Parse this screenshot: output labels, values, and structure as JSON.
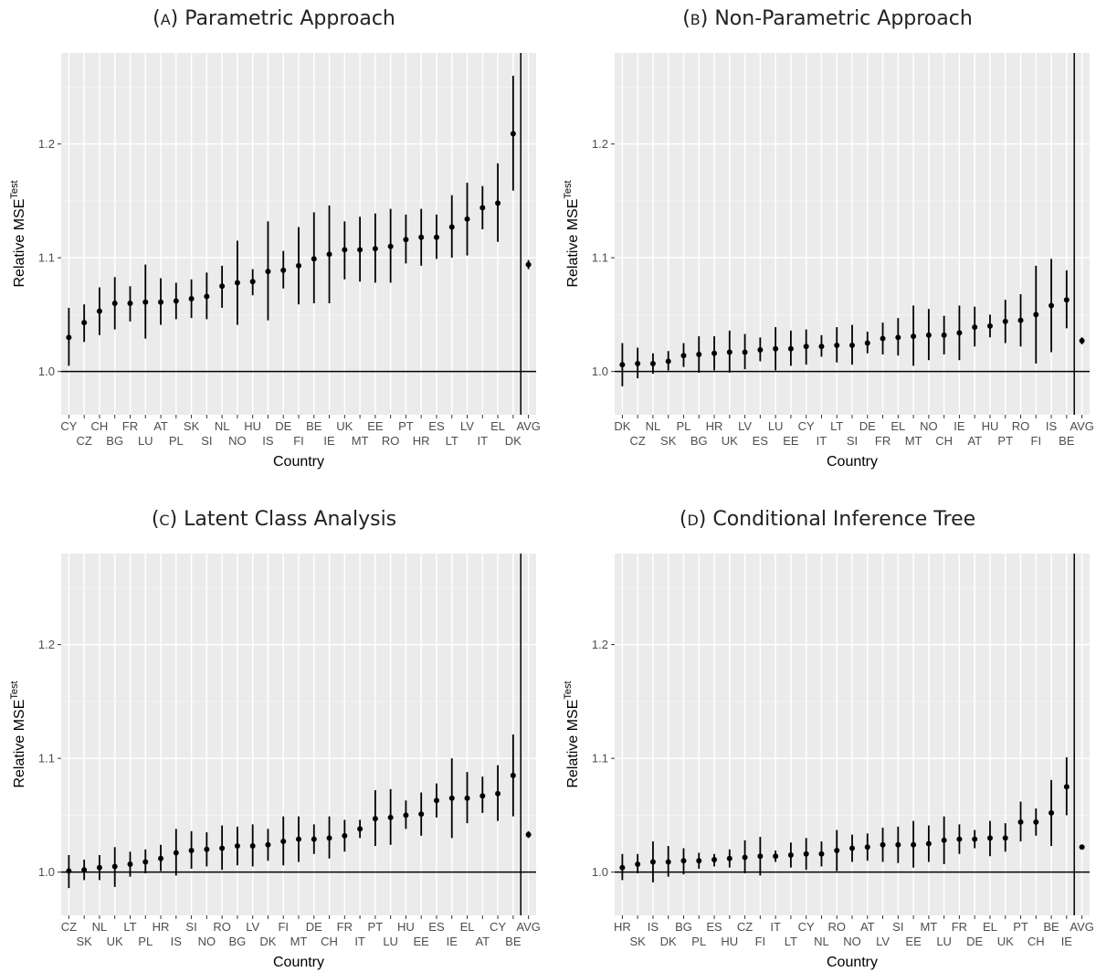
{
  "chart_data": [
    {
      "type": "scatter",
      "title": "(A) Parametric Approach",
      "xlabel": "Country",
      "ylabel": "Relative MSE",
      "ylabel_sup": "Test",
      "ylim": [
        0.962,
        1.28
      ],
      "yticks": [
        "1.0",
        "1.1",
        "1.2"
      ],
      "hline": 1.0,
      "separator_before": "AVG",
      "points": [
        {
          "label": "CY",
          "y": 1.03,
          "lo": 1.005,
          "hi": 1.056
        },
        {
          "label": "CZ",
          "y": 1.043,
          "lo": 1.026,
          "hi": 1.059
        },
        {
          "label": "CH",
          "y": 1.053,
          "lo": 1.032,
          "hi": 1.074
        },
        {
          "label": "BG",
          "y": 1.06,
          "lo": 1.037,
          "hi": 1.083
        },
        {
          "label": "FR",
          "y": 1.06,
          "lo": 1.044,
          "hi": 1.075
        },
        {
          "label": "LU",
          "y": 1.061,
          "lo": 1.029,
          "hi": 1.094
        },
        {
          "label": "AT",
          "y": 1.061,
          "lo": 1.041,
          "hi": 1.082
        },
        {
          "label": "PL",
          "y": 1.062,
          "lo": 1.046,
          "hi": 1.078
        },
        {
          "label": "SK",
          "y": 1.064,
          "lo": 1.047,
          "hi": 1.081
        },
        {
          "label": "SI",
          "y": 1.066,
          "lo": 1.046,
          "hi": 1.087
        },
        {
          "label": "NL",
          "y": 1.075,
          "lo": 1.056,
          "hi": 1.093
        },
        {
          "label": "NO",
          "y": 1.078,
          "lo": 1.041,
          "hi": 1.115
        },
        {
          "label": "HU",
          "y": 1.079,
          "lo": 1.067,
          "hi": 1.09
        },
        {
          "label": "IS",
          "y": 1.088,
          "lo": 1.045,
          "hi": 1.132
        },
        {
          "label": "DE",
          "y": 1.089,
          "lo": 1.073,
          "hi": 1.106
        },
        {
          "label": "FI",
          "y": 1.093,
          "lo": 1.059,
          "hi": 1.127
        },
        {
          "label": "BE",
          "y": 1.099,
          "lo": 1.06,
          "hi": 1.14
        },
        {
          "label": "IE",
          "y": 1.103,
          "lo": 1.06,
          "hi": 1.146
        },
        {
          "label": "UK",
          "y": 1.107,
          "lo": 1.081,
          "hi": 1.132
        },
        {
          "label": "MT",
          "y": 1.107,
          "lo": 1.079,
          "hi": 1.136
        },
        {
          "label": "EE",
          "y": 1.108,
          "lo": 1.078,
          "hi": 1.139
        },
        {
          "label": "RO",
          "y": 1.11,
          "lo": 1.078,
          "hi": 1.143
        },
        {
          "label": "PT",
          "y": 1.116,
          "lo": 1.095,
          "hi": 1.138
        },
        {
          "label": "HR",
          "y": 1.118,
          "lo": 1.093,
          "hi": 1.143
        },
        {
          "label": "ES",
          "y": 1.118,
          "lo": 1.099,
          "hi": 1.138
        },
        {
          "label": "LT",
          "y": 1.127,
          "lo": 1.1,
          "hi": 1.155
        },
        {
          "label": "LV",
          "y": 1.134,
          "lo": 1.102,
          "hi": 1.166
        },
        {
          "label": "IT",
          "y": 1.144,
          "lo": 1.125,
          "hi": 1.163
        },
        {
          "label": "EL",
          "y": 1.148,
          "lo": 1.114,
          "hi": 1.183
        },
        {
          "label": "DK",
          "y": 1.209,
          "lo": 1.159,
          "hi": 1.26
        },
        {
          "label": "AVG",
          "y": 1.094,
          "lo": 1.09,
          "hi": 1.098
        }
      ]
    },
    {
      "type": "scatter",
      "title": "(B) Non-Parametric Approach",
      "xlabel": "Country",
      "ylabel": "Relative MSE",
      "ylabel_sup": "Test",
      "ylim": [
        0.962,
        1.28
      ],
      "yticks": [
        "1.0",
        "1.1",
        "1.2"
      ],
      "hline": 1.0,
      "separator_before": "AVG",
      "points": [
        {
          "label": "DK",
          "y": 1.006,
          "lo": 0.987,
          "hi": 1.025
        },
        {
          "label": "CZ",
          "y": 1.007,
          "lo": 0.994,
          "hi": 1.021
        },
        {
          "label": "NL",
          "y": 1.007,
          "lo": 0.998,
          "hi": 1.016
        },
        {
          "label": "SK",
          "y": 1.009,
          "lo": 1.001,
          "hi": 1.018
        },
        {
          "label": "PL",
          "y": 1.014,
          "lo": 1.004,
          "hi": 1.025
        },
        {
          "label": "BG",
          "y": 1.015,
          "lo": 0.999,
          "hi": 1.031
        },
        {
          "label": "HR",
          "y": 1.016,
          "lo": 1.001,
          "hi": 1.031
        },
        {
          "label": "UK",
          "y": 1.017,
          "lo": 0.999,
          "hi": 1.036
        },
        {
          "label": "LV",
          "y": 1.017,
          "lo": 1.002,
          "hi": 1.033
        },
        {
          "label": "ES",
          "y": 1.019,
          "lo": 1.009,
          "hi": 1.03
        },
        {
          "label": "LU",
          "y": 1.02,
          "lo": 1.001,
          "hi": 1.039
        },
        {
          "label": "EE",
          "y": 1.02,
          "lo": 1.005,
          "hi": 1.036
        },
        {
          "label": "CY",
          "y": 1.022,
          "lo": 1.006,
          "hi": 1.037
        },
        {
          "label": "IT",
          "y": 1.022,
          "lo": 1.013,
          "hi": 1.032
        },
        {
          "label": "LT",
          "y": 1.023,
          "lo": 1.008,
          "hi": 1.039
        },
        {
          "label": "SI",
          "y": 1.023,
          "lo": 1.006,
          "hi": 1.041
        },
        {
          "label": "DE",
          "y": 1.025,
          "lo": 1.016,
          "hi": 1.035
        },
        {
          "label": "FR",
          "y": 1.029,
          "lo": 1.015,
          "hi": 1.043
        },
        {
          "label": "EL",
          "y": 1.03,
          "lo": 1.014,
          "hi": 1.047
        },
        {
          "label": "MT",
          "y": 1.031,
          "lo": 1.005,
          "hi": 1.058
        },
        {
          "label": "NO",
          "y": 1.032,
          "lo": 1.01,
          "hi": 1.055
        },
        {
          "label": "CH",
          "y": 1.032,
          "lo": 1.015,
          "hi": 1.049
        },
        {
          "label": "IE",
          "y": 1.034,
          "lo": 1.01,
          "hi": 1.058
        },
        {
          "label": "AT",
          "y": 1.039,
          "lo": 1.022,
          "hi": 1.057
        },
        {
          "label": "HU",
          "y": 1.04,
          "lo": 1.03,
          "hi": 1.05
        },
        {
          "label": "PT",
          "y": 1.044,
          "lo": 1.025,
          "hi": 1.063
        },
        {
          "label": "RO",
          "y": 1.045,
          "lo": 1.022,
          "hi": 1.068
        },
        {
          "label": "FI",
          "y": 1.05,
          "lo": 1.007,
          "hi": 1.093
        },
        {
          "label": "IS",
          "y": 1.058,
          "lo": 1.017,
          "hi": 1.099
        },
        {
          "label": "BE",
          "y": 1.063,
          "lo": 1.038,
          "hi": 1.089
        },
        {
          "label": "AVG",
          "y": 1.027,
          "lo": 1.024,
          "hi": 1.03
        }
      ]
    },
    {
      "type": "scatter",
      "title": "(C) Latent Class Analysis",
      "xlabel": "Country",
      "ylabel": "Relative MSE",
      "ylabel_sup": "Test",
      "ylim": [
        0.962,
        1.28
      ],
      "yticks": [
        "1.0",
        "1.1",
        "1.2"
      ],
      "hline": 1.0,
      "separator_before": "AVG",
      "points": [
        {
          "label": "CZ",
          "y": 1.001,
          "lo": 0.986,
          "hi": 1.015
        },
        {
          "label": "SK",
          "y": 1.002,
          "lo": 0.993,
          "hi": 1.011
        },
        {
          "label": "NL",
          "y": 1.004,
          "lo": 0.993,
          "hi": 1.015
        },
        {
          "label": "UK",
          "y": 1.005,
          "lo": 0.987,
          "hi": 1.022
        },
        {
          "label": "LT",
          "y": 1.007,
          "lo": 0.996,
          "hi": 1.018
        },
        {
          "label": "PL",
          "y": 1.009,
          "lo": 0.999,
          "hi": 1.02
        },
        {
          "label": "HR",
          "y": 1.012,
          "lo": 1.001,
          "hi": 1.024
        },
        {
          "label": "IS",
          "y": 1.017,
          "lo": 0.997,
          "hi": 1.038
        },
        {
          "label": "SI",
          "y": 1.019,
          "lo": 1.003,
          "hi": 1.036
        },
        {
          "label": "NO",
          "y": 1.02,
          "lo": 1.005,
          "hi": 1.035
        },
        {
          "label": "RO",
          "y": 1.021,
          "lo": 1.002,
          "hi": 1.041
        },
        {
          "label": "BG",
          "y": 1.023,
          "lo": 1.006,
          "hi": 1.04
        },
        {
          "label": "LV",
          "y": 1.023,
          "lo": 1.005,
          "hi": 1.042
        },
        {
          "label": "DK",
          "y": 1.024,
          "lo": 1.01,
          "hi": 1.038
        },
        {
          "label": "FI",
          "y": 1.027,
          "lo": 1.006,
          "hi": 1.049
        },
        {
          "label": "MT",
          "y": 1.029,
          "lo": 1.009,
          "hi": 1.049
        },
        {
          "label": "DE",
          "y": 1.029,
          "lo": 1.016,
          "hi": 1.042
        },
        {
          "label": "CH",
          "y": 1.03,
          "lo": 1.012,
          "hi": 1.049
        },
        {
          "label": "FR",
          "y": 1.032,
          "lo": 1.018,
          "hi": 1.046
        },
        {
          "label": "IT",
          "y": 1.038,
          "lo": 1.03,
          "hi": 1.046
        },
        {
          "label": "PT",
          "y": 1.047,
          "lo": 1.023,
          "hi": 1.072
        },
        {
          "label": "LU",
          "y": 1.048,
          "lo": 1.024,
          "hi": 1.073
        },
        {
          "label": "HU",
          "y": 1.05,
          "lo": 1.038,
          "hi": 1.063
        },
        {
          "label": "EE",
          "y": 1.051,
          "lo": 1.032,
          "hi": 1.07
        },
        {
          "label": "ES",
          "y": 1.063,
          "lo": 1.048,
          "hi": 1.078
        },
        {
          "label": "IE",
          "y": 1.065,
          "lo": 1.03,
          "hi": 1.1
        },
        {
          "label": "EL",
          "y": 1.065,
          "lo": 1.043,
          "hi": 1.088
        },
        {
          "label": "AT",
          "y": 1.067,
          "lo": 1.052,
          "hi": 1.084
        },
        {
          "label": "CY",
          "y": 1.069,
          "lo": 1.045,
          "hi": 1.094
        },
        {
          "label": "BE",
          "y": 1.085,
          "lo": 1.049,
          "hi": 1.121
        },
        {
          "label": "AVG",
          "y": 1.033,
          "lo": 1.03,
          "hi": 1.036
        }
      ]
    },
    {
      "type": "scatter",
      "title": "(D) Conditional Inference Tree",
      "xlabel": "Country",
      "ylabel": "Relative MSE",
      "ylabel_sup": "Test",
      "ylim": [
        0.962,
        1.28
      ],
      "yticks": [
        "1.0",
        "1.1",
        "1.2"
      ],
      "hline": 1.0,
      "separator_before": "AVG",
      "points": [
        {
          "label": "HR",
          "y": 1.004,
          "lo": 0.993,
          "hi": 1.016
        },
        {
          "label": "SK",
          "y": 1.007,
          "lo": 0.999,
          "hi": 1.016
        },
        {
          "label": "IS",
          "y": 1.009,
          "lo": 0.991,
          "hi": 1.027
        },
        {
          "label": "DK",
          "y": 1.009,
          "lo": 0.996,
          "hi": 1.023
        },
        {
          "label": "BG",
          "y": 1.01,
          "lo": 0.998,
          "hi": 1.021
        },
        {
          "label": "PL",
          "y": 1.01,
          "lo": 1.003,
          "hi": 1.017
        },
        {
          "label": "ES",
          "y": 1.011,
          "lo": 1.005,
          "hi": 1.016
        },
        {
          "label": "HU",
          "y": 1.012,
          "lo": 1.004,
          "hi": 1.02
        },
        {
          "label": "CZ",
          "y": 1.013,
          "lo": 0.999,
          "hi": 1.028
        },
        {
          "label": "FI",
          "y": 1.014,
          "lo": 0.997,
          "hi": 1.031
        },
        {
          "label": "IT",
          "y": 1.014,
          "lo": 1.009,
          "hi": 1.019
        },
        {
          "label": "LT",
          "y": 1.015,
          "lo": 1.004,
          "hi": 1.026
        },
        {
          "label": "CY",
          "y": 1.016,
          "lo": 1.002,
          "hi": 1.03
        },
        {
          "label": "NL",
          "y": 1.016,
          "lo": 1.005,
          "hi": 1.027
        },
        {
          "label": "RO",
          "y": 1.019,
          "lo": 1.001,
          "hi": 1.037
        },
        {
          "label": "NO",
          "y": 1.021,
          "lo": 1.009,
          "hi": 1.033
        },
        {
          "label": "AT",
          "y": 1.022,
          "lo": 1.01,
          "hi": 1.034
        },
        {
          "label": "LV",
          "y": 1.024,
          "lo": 1.009,
          "hi": 1.039
        },
        {
          "label": "SI",
          "y": 1.024,
          "lo": 1.008,
          "hi": 1.04
        },
        {
          "label": "EE",
          "y": 1.024,
          "lo": 1.004,
          "hi": 1.045
        },
        {
          "label": "MT",
          "y": 1.025,
          "lo": 1.009,
          "hi": 1.041
        },
        {
          "label": "LU",
          "y": 1.028,
          "lo": 1.007,
          "hi": 1.049
        },
        {
          "label": "FR",
          "y": 1.029,
          "lo": 1.016,
          "hi": 1.042
        },
        {
          "label": "DE",
          "y": 1.029,
          "lo": 1.021,
          "hi": 1.037
        },
        {
          "label": "EL",
          "y": 1.03,
          "lo": 1.014,
          "hi": 1.045
        },
        {
          "label": "UK",
          "y": 1.03,
          "lo": 1.018,
          "hi": 1.043
        },
        {
          "label": "PT",
          "y": 1.044,
          "lo": 1.027,
          "hi": 1.062
        },
        {
          "label": "CH",
          "y": 1.044,
          "lo": 1.032,
          "hi": 1.056
        },
        {
          "label": "BE",
          "y": 1.052,
          "lo": 1.023,
          "hi": 1.081
        },
        {
          "label": "IE",
          "y": 1.075,
          "lo": 1.05,
          "hi": 1.101
        },
        {
          "label": "AVG",
          "y": 1.022,
          "lo": 1.02,
          "hi": 1.024
        }
      ]
    }
  ]
}
